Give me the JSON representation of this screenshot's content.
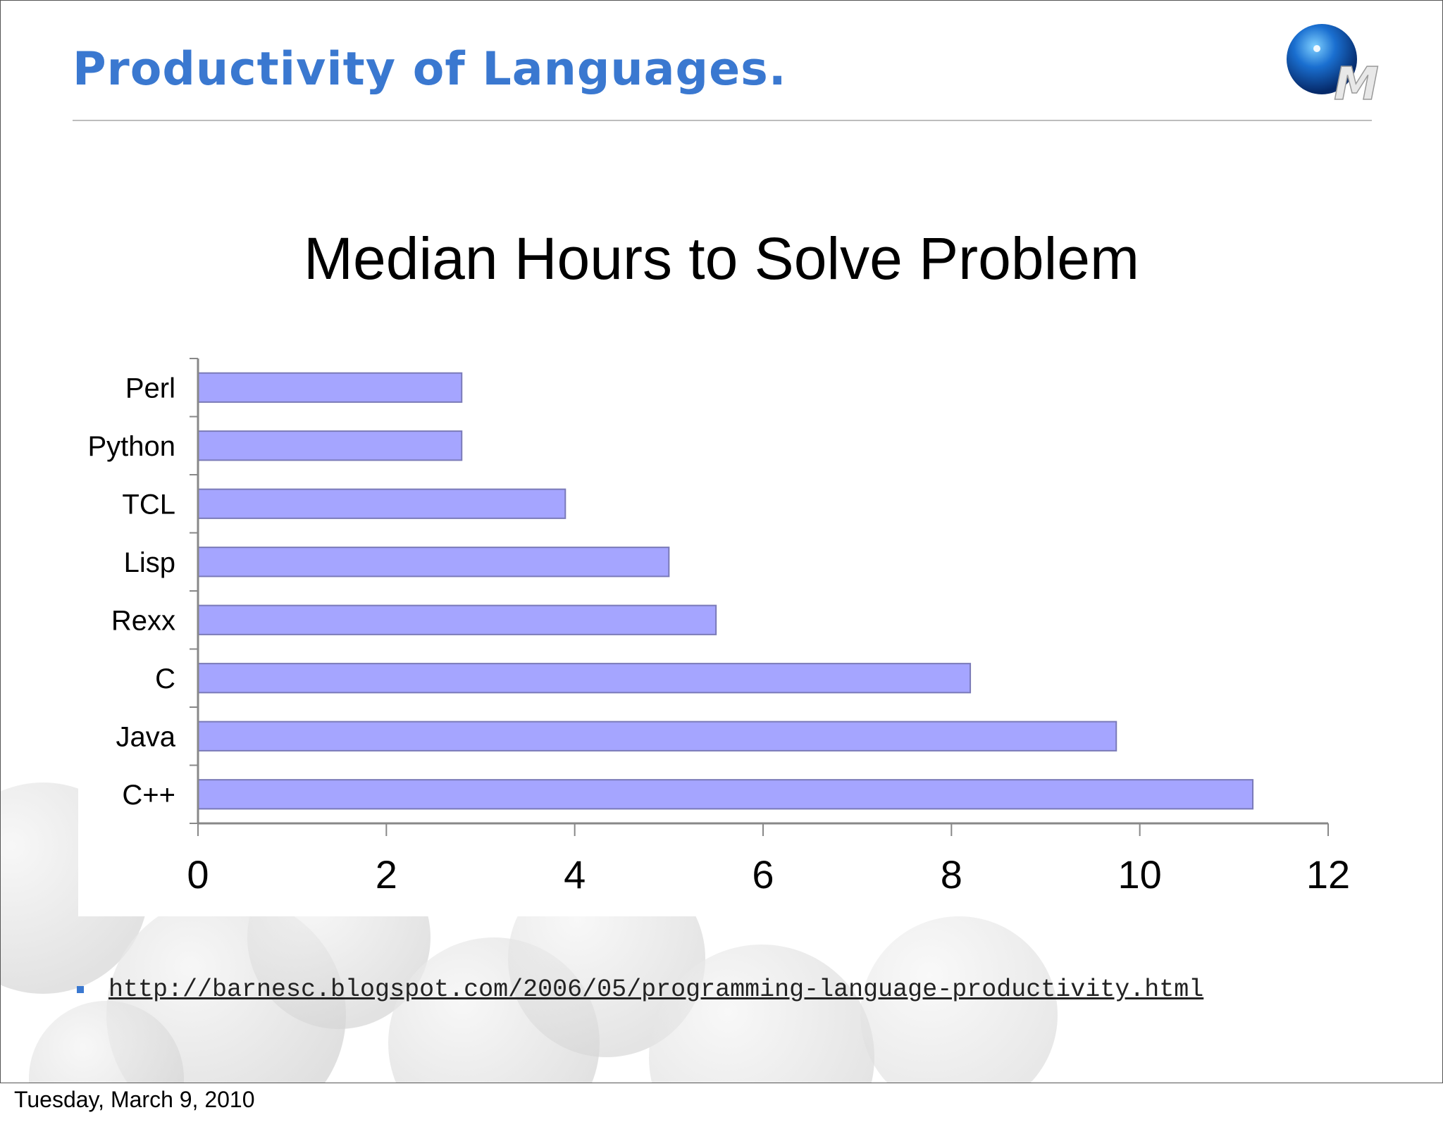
{
  "slide": {
    "title": "Productivity of Languages.",
    "logo_letter": "M",
    "source_url": "http://barnesc.blogspot.com/2006/05/programming-language-productivity.html"
  },
  "footer": {
    "date": "Tuesday, March 9, 2010"
  },
  "colors": {
    "title": "#3a78d0",
    "bar_fill": "#a5a5ff",
    "bar_stroke": "#7a7ab8",
    "axis": "#888888"
  },
  "chart_data": {
    "type": "bar",
    "orientation": "horizontal",
    "title": "Median Hours to Solve Problem",
    "xlabel": "",
    "ylabel": "",
    "categories": [
      "Perl",
      "Python",
      "TCL",
      "Lisp",
      "Rexx",
      "C",
      "Java",
      "C++"
    ],
    "values": [
      2.8,
      2.8,
      3.9,
      5.0,
      5.5,
      8.2,
      9.75,
      11.2
    ],
    "xlim": [
      0,
      12
    ],
    "xticks": [
      0,
      2,
      4,
      6,
      8,
      10,
      12
    ],
    "grid": false,
    "legend": "none"
  }
}
